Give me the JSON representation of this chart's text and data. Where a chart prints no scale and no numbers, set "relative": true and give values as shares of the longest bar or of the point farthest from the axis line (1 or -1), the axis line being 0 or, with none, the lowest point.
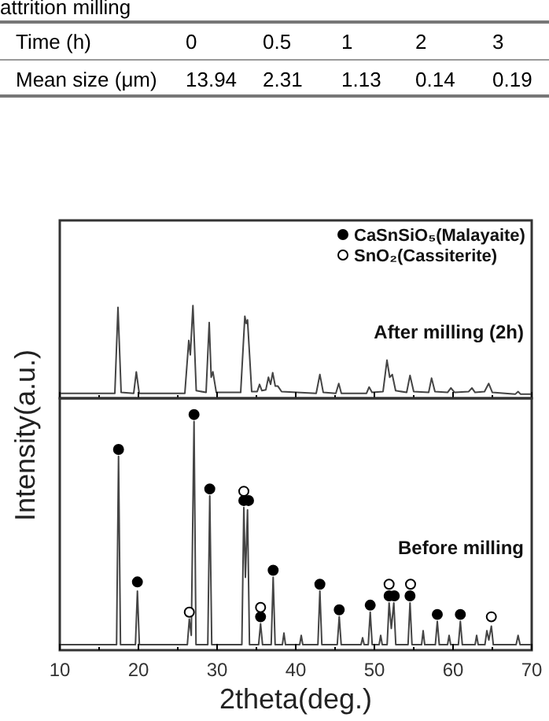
{
  "chart_data": [
    {
      "type": "other",
      "title": "attrition milling",
      "xlabel": "Time (h)",
      "ylabel": "Mean size (μm)",
      "categories": [
        "0",
        "0.5",
        "1",
        "2",
        "3"
      ],
      "values": [
        13.94,
        2.31,
        1.13,
        0.14,
        0.19
      ],
      "data_labels": true
    },
    {
      "type": "line",
      "relative": true,
      "xlim": [
        10,
        70
      ],
      "xticks": [
        10,
        {
          "value": 15,
          "label": null
        },
        20,
        {
          "value": 25,
          "label": null
        },
        30,
        {
          "value": 35,
          "label": null
        },
        40,
        {
          "value": 45,
          "label": null
        },
        50,
        {
          "value": 55,
          "label": null
        },
        60,
        {
          "value": 65,
          "label": null
        },
        70
      ],
      "tick_labels": false,
      "annotations": [
        "After milling (2h)"
      ],
      "series": [
        {
          "color": "#444444",
          "x": [
            10,
            17.0,
            17.4,
            17.8,
            19.4,
            19.73,
            20.1,
            25.9,
            26.4,
            26.6,
            26.93,
            27.35,
            28.6,
            29.0,
            29.25,
            29.47,
            29.9,
            33.0,
            33.53,
            33.7,
            33.87,
            34.4,
            35.1,
            35.4,
            35.7,
            36.2,
            36.53,
            36.8,
            37.07,
            37.4,
            37.73,
            38.2,
            42.6,
            43.07,
            43.5,
            45.1,
            45.47,
            45.8,
            49.0,
            49.33,
            49.7,
            51.1,
            51.6,
            51.95,
            52.27,
            52.7,
            54.1,
            54.53,
            55.0,
            56.9,
            57.27,
            57.7,
            59.3,
            59.73,
            60.2,
            62.0,
            62.4,
            62.8,
            64.0,
            64.53,
            65.0,
            67.9,
            68.27,
            68.6,
            70
          ],
          "values": [
            0.02,
            0.02,
            0.98,
            0.03,
            0.02,
            0.26,
            0.02,
            0.02,
            0.61,
            0.45,
            1.0,
            0.05,
            0.03,
            0.81,
            0.2,
            0.26,
            0.03,
            0.03,
            0.88,
            0.8,
            0.84,
            0.04,
            0.04,
            0.12,
            0.05,
            0.06,
            0.2,
            0.12,
            0.25,
            0.1,
            0.1,
            0.04,
            0.02,
            0.23,
            0.03,
            0.02,
            0.13,
            0.02,
            0.02,
            0.09,
            0.03,
            0.04,
            0.39,
            0.2,
            0.23,
            0.05,
            0.03,
            0.22,
            0.04,
            0.03,
            0.19,
            0.04,
            0.03,
            0.08,
            0.03,
            0.04,
            0.08,
            0.03,
            0.04,
            0.13,
            0.03,
            0.01,
            0.04,
            0.01,
            0.01
          ]
        }
      ]
    },
    {
      "type": "line",
      "relative": true,
      "xlim": [
        10,
        70
      ],
      "xticks": [
        10,
        {
          "value": 15,
          "label": null
        },
        20,
        {
          "value": 25,
          "label": null
        },
        30,
        {
          "value": 35,
          "label": null
        },
        40,
        {
          "value": 45,
          "label": null
        },
        50,
        {
          "value": 55,
          "label": null
        },
        60,
        {
          "value": 65,
          "label": null
        },
        70
      ],
      "xlabel": "2theta(deg.)",
      "ylabel": "Intensity(a.u.)",
      "annotations": [
        "Before milling"
      ],
      "legend": "top right",
      "series": [
        {
          "color": "#444444",
          "x": [
            10,
            17.22,
            17.47,
            17.72,
            19.62,
            19.87,
            20.12,
            26.22,
            26.47,
            26.72,
            27.07,
            27.32,
            28.82,
            29.07,
            29.32,
            33.15,
            33.4,
            33.6,
            33.87,
            34.12,
            35.28,
            35.53,
            35.78,
            36.88,
            37.13,
            37.38,
            38.3,
            38.5,
            38.7,
            40.5,
            40.7,
            40.9,
            42.82,
            43.07,
            43.32,
            45.28,
            45.53,
            45.78,
            48.3,
            48.5,
            48.7,
            49.22,
            49.47,
            49.72,
            50.6,
            50.8,
            51.0,
            51.62,
            51.87,
            52.15,
            52.47,
            52.72,
            54.28,
            54.53,
            54.78,
            56.0,
            56.2,
            56.4,
            57.75,
            58.0,
            58.25,
            59.3,
            59.5,
            59.7,
            60.68,
            60.93,
            61.18,
            62.8,
            63.0,
            63.2,
            64.05,
            64.3,
            64.55,
            64.87,
            65.12,
            68.02,
            68.27,
            68.52,
            70
          ],
          "values": [
            0.01,
            0.01,
            0.82,
            0.01,
            0.01,
            0.24,
            0.01,
            0.01,
            0.12,
            0.05,
            0.97,
            0.01,
            0.01,
            0.65,
            0.01,
            0.01,
            0.6,
            0.3,
            0.59,
            0.01,
            0.01,
            0.1,
            0.01,
            0.01,
            0.3,
            0.01,
            0.01,
            0.06,
            0.01,
            0.01,
            0.05,
            0.01,
            0.01,
            0.24,
            0.01,
            0.01,
            0.13,
            0.01,
            0.01,
            0.04,
            0.01,
            0.01,
            0.15,
            0.01,
            0.01,
            0.05,
            0.01,
            0.01,
            0.19,
            0.08,
            0.19,
            0.01,
            0.01,
            0.19,
            0.01,
            0.01,
            0.07,
            0.01,
            0.01,
            0.11,
            0.01,
            0.01,
            0.05,
            0.01,
            0.01,
            0.11,
            0.01,
            0.01,
            0.05,
            0.01,
            0.01,
            0.07,
            0.03,
            0.09,
            0.01,
            0.01,
            0.05,
            0.01,
            0.01
          ]
        },
        {
          "type": "scatter",
          "name": "CaSnSiO₅(Malayaite)",
          "color": "#000000",
          "marker": "circle",
          "x": [
            17.47,
            19.87,
            27.07,
            29.07,
            33.4,
            34.0,
            35.53,
            37.13,
            43.07,
            45.53,
            49.47,
            51.87,
            52.53,
            54.53,
            58.0,
            60.93
          ],
          "values": [
            0.85,
            0.28,
            1.0,
            0.68,
            0.63,
            0.63,
            0.13,
            0.33,
            0.27,
            0.16,
            0.18,
            0.22,
            0.22,
            0.22,
            0.14,
            0.14
          ]
        },
        {
          "type": "scatter",
          "name": "SnO₂(Cassiterite)",
          "color": "#ffffff",
          "marker": "circle",
          "x": [
            26.47,
            33.4,
            35.53,
            51.87,
            54.6,
            64.87
          ],
          "values": [
            0.15,
            0.67,
            0.17,
            0.27,
            0.27,
            0.13
          ]
        }
      ]
    }
  ]
}
